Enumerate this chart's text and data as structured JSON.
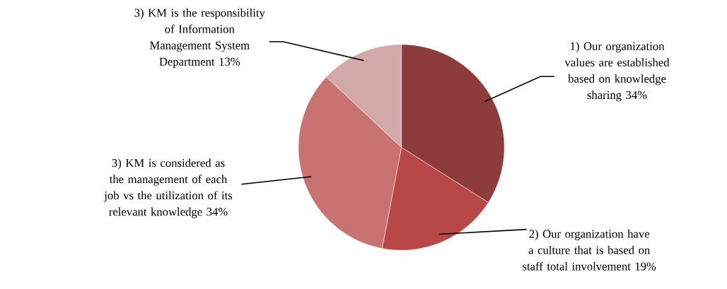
{
  "chart_data": {
    "type": "pie",
    "categories": [
      "1) Our organization values are established based on knowledge sharing",
      "2) Our organization have a culture that is based on staff total involvement",
      "3) KM is considered as the management of each job vs the utilization of its relevant knowledge",
      "3) KM is the responsibility of Information Management System Department"
    ],
    "values": [
      34,
      19,
      34,
      13
    ],
    "colors": [
      "#8e3b3b",
      "#b84848",
      "#c87372",
      "#d2a9a8"
    ],
    "value_labels": [
      "34%",
      "19%",
      "34%",
      "13%"
    ]
  }
}
